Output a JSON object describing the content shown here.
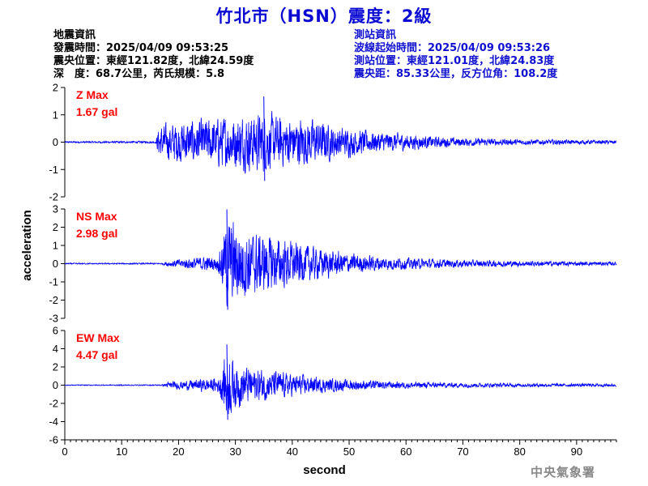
{
  "title": "竹北市（HSN）震度：2級",
  "info_left": {
    "heading": "地震資訊",
    "time": "發震時間：2025/04/09 09:53:25",
    "location": "震央位置：東經121.82度，北緯24.59度",
    "depth": "深　度：68.7公里，芮氏規模：5.8"
  },
  "info_right": {
    "heading": "測站資訊",
    "start": "波線起始時間：2025/04/09 09:53:26",
    "location": "測站位置：東經121.01度，北緯24.83度",
    "distance": "震央距：85.33公里，反方位角：108.2度"
  },
  "credit": "中央氣象署",
  "colors": {
    "trace": "#0000ff",
    "label": "#ff0000",
    "title": "#0a0ad2"
  },
  "chart_data": {
    "type": "line",
    "xlabel": "second",
    "ylabel": "acceleration",
    "xlim": [
      0,
      97
    ],
    "xticks": [
      0,
      10,
      20,
      30,
      40,
      50,
      60,
      70,
      80,
      90
    ],
    "panels": [
      {
        "name": "Z Max",
        "max_label": "1.67 gal",
        "peak": 1.67,
        "ylim": [
          -2,
          2
        ],
        "yticks": [
          -2,
          -1,
          0,
          1,
          2
        ],
        "envelope": [
          [
            0,
            0.03
          ],
          [
            16,
            0.04
          ],
          [
            16.5,
            0.55
          ],
          [
            20,
            0.75
          ],
          [
            24,
            0.8
          ],
          [
            28,
            0.9
          ],
          [
            32,
            1.0
          ],
          [
            35,
            1.05
          ],
          [
            38,
            0.9
          ],
          [
            42,
            0.85
          ],
          [
            45,
            0.75
          ],
          [
            48,
            0.55
          ],
          [
            52,
            0.45
          ],
          [
            56,
            0.35
          ],
          [
            60,
            0.3
          ],
          [
            65,
            0.2
          ],
          [
            70,
            0.15
          ],
          [
            80,
            0.1
          ],
          [
            90,
            0.08
          ],
          [
            97,
            0.07
          ]
        ]
      },
      {
        "name": "NS Max",
        "max_label": "2.98 gal",
        "peak": 2.98,
        "ylim": [
          -3,
          3
        ],
        "yticks": [
          -3,
          -2,
          -1,
          0,
          1,
          2,
          3
        ],
        "envelope": [
          [
            0,
            0.03
          ],
          [
            17,
            0.04
          ],
          [
            18,
            0.15
          ],
          [
            23,
            0.35
          ],
          [
            27,
            0.4
          ],
          [
            28.5,
            2.5
          ],
          [
            30,
            2.2
          ],
          [
            33,
            1.7
          ],
          [
            36,
            1.5
          ],
          [
            40,
            1.2
          ],
          [
            45,
            0.8
          ],
          [
            50,
            0.55
          ],
          [
            55,
            0.4
          ],
          [
            60,
            0.3
          ],
          [
            70,
            0.2
          ],
          [
            80,
            0.15
          ],
          [
            97,
            0.1
          ]
        ]
      },
      {
        "name": "EW Max",
        "max_label": "4.47 gal",
        "peak": 4.47,
        "ylim": [
          -6,
          6
        ],
        "yticks": [
          -6,
          -4,
          -2,
          0,
          2,
          4,
          6
        ],
        "envelope": [
          [
            0,
            0.05
          ],
          [
            17,
            0.06
          ],
          [
            18,
            0.3
          ],
          [
            23,
            0.6
          ],
          [
            27,
            0.8
          ],
          [
            28.5,
            3.8
          ],
          [
            30,
            2.5
          ],
          [
            33,
            1.8
          ],
          [
            36,
            1.6
          ],
          [
            40,
            1.2
          ],
          [
            45,
            0.8
          ],
          [
            50,
            0.6
          ],
          [
            55,
            0.45
          ],
          [
            60,
            0.35
          ],
          [
            70,
            0.25
          ],
          [
            80,
            0.2
          ],
          [
            97,
            0.15
          ]
        ]
      }
    ]
  }
}
